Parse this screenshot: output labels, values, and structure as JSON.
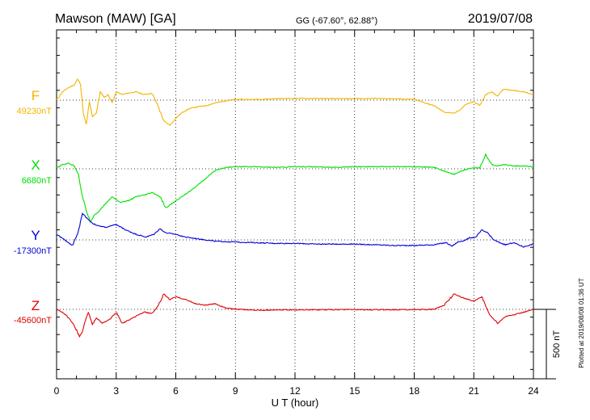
{
  "header": {
    "station": "Mawson (MAW)  [GA]",
    "coords": "GG (-67.60°,  62.88°)",
    "date": "2019/07/08"
  },
  "footer": {
    "plotted_note": "Plotted at 2019/08/08 01:36 UT"
  },
  "scale_bar": {
    "label": "500 nT",
    "value_nT": 500
  },
  "colors": {
    "F": "#f4b400",
    "X": "#00e000",
    "Y": "#0000dd",
    "Z": "#e00000"
  },
  "chart_data": {
    "type": "line",
    "xlabel": "U T (hour)",
    "xlim": [
      0,
      24
    ],
    "xticks": [
      "0",
      "3",
      "6",
      "9",
      "12",
      "15",
      "18",
      "21",
      "24"
    ],
    "grid": true,
    "y_units": "nT",
    "y_full_range_nT": 2500,
    "series": [
      {
        "name": "F",
        "baseline_label": "49230nT",
        "baseline": 49230,
        "x": [
          0,
          0.3,
          0.6,
          0.9,
          1.05,
          1.2,
          1.35,
          1.5,
          1.65,
          1.8,
          2.0,
          2.2,
          2.4,
          2.6,
          2.8,
          3.0,
          3.3,
          3.6,
          4.0,
          4.4,
          4.8,
          5.1,
          5.4,
          5.7,
          6.0,
          6.3,
          6.7,
          7.0,
          7.5,
          8.0,
          8.5,
          9.0,
          10,
          11,
          12,
          13,
          14,
          15,
          16,
          17,
          18,
          19,
          19.5,
          20.0,
          20.3,
          20.6,
          21.0,
          21.3,
          21.6,
          21.9,
          22.2,
          22.5,
          23.0,
          23.5,
          24
        ],
        "values": [
          0,
          60,
          90,
          110,
          150,
          120,
          -100,
          -175,
          -10,
          -120,
          -90,
          60,
          20,
          40,
          -20,
          60,
          40,
          50,
          60,
          40,
          50,
          -40,
          -150,
          -180,
          -130,
          -90,
          -60,
          -50,
          -40,
          -20,
          -5,
          5,
          5,
          10,
          12,
          12,
          10,
          10,
          12,
          10,
          5,
          -40,
          -85,
          -95,
          -70,
          -30,
          -10,
          -40,
          40,
          60,
          30,
          80,
          70,
          60,
          40
        ]
      },
      {
        "name": "X",
        "baseline_label": "6680nT",
        "baseline": 6680,
        "x": [
          0,
          0.3,
          0.6,
          0.9,
          1.1,
          1.3,
          1.5,
          1.7,
          1.9,
          2.1,
          2.4,
          2.8,
          3.2,
          3.6,
          4.0,
          4.4,
          4.8,
          5.2,
          5.5,
          5.8,
          6.2,
          6.6,
          7.0,
          7.5,
          8.0,
          8.5,
          9.0,
          10,
          11,
          12,
          13,
          14,
          15,
          16,
          17,
          18,
          19,
          20.0,
          20.5,
          21.0,
          21.3,
          21.6,
          21.9,
          22.2,
          22.5,
          23.0,
          23.5,
          24
        ],
        "values": [
          5,
          30,
          40,
          20,
          -40,
          -200,
          -300,
          -380,
          -330,
          -310,
          -260,
          -200,
          -240,
          -230,
          -200,
          -190,
          -170,
          -200,
          -280,
          -250,
          -210,
          -170,
          -130,
          -70,
          -10,
          10,
          15,
          15,
          10,
          15,
          15,
          10,
          15,
          15,
          15,
          15,
          10,
          -40,
          -10,
          10,
          5,
          100,
          30,
          20,
          30,
          20,
          20,
          15
        ]
      },
      {
        "name": "Y",
        "baseline_label": "-17300nT",
        "baseline": -17300,
        "x": [
          0,
          0.4,
          0.8,
          1.1,
          1.3,
          1.5,
          1.8,
          2.1,
          2.5,
          3.0,
          3.5,
          4.0,
          4.5,
          4.9,
          5.2,
          5.5,
          6.0,
          6.5,
          7.0,
          7.5,
          8.0,
          9.0,
          10,
          11,
          12,
          13,
          14,
          15,
          16,
          17,
          18,
          19,
          19.6,
          19.9,
          20.2,
          20.5,
          20.8,
          21.1,
          21.4,
          21.7,
          22.0,
          22.3,
          22.6,
          23.0,
          23.5,
          24
        ],
        "values": [
          40,
          0,
          -40,
          60,
          190,
          160,
          120,
          100,
          90,
          110,
          70,
          40,
          20,
          40,
          80,
          50,
          40,
          20,
          10,
          0,
          -10,
          -15,
          -20,
          -25,
          -25,
          -30,
          -30,
          -30,
          -35,
          -40,
          -40,
          -35,
          -20,
          -45,
          -15,
          -5,
          15,
          20,
          70,
          50,
          0,
          -20,
          -35,
          -20,
          -50,
          -30
        ]
      },
      {
        "name": "Z",
        "baseline_label": "-45600nT",
        "baseline": -45600,
        "x": [
          0,
          0.3,
          0.6,
          0.9,
          1.15,
          1.3,
          1.45,
          1.6,
          1.8,
          2.0,
          2.3,
          2.7,
          3.0,
          3.3,
          3.6,
          4.0,
          4.4,
          4.8,
          5.1,
          5.4,
          5.7,
          6.0,
          6.5,
          7.0,
          7.5,
          8.0,
          8.5,
          9.0,
          10,
          11,
          12,
          13,
          14,
          15,
          16,
          17,
          18,
          19,
          19.5,
          20.0,
          20.5,
          21.0,
          21.4,
          21.8,
          22.2,
          22.6,
          23.0,
          23.5,
          24
        ],
        "values": [
          0,
          -20,
          -60,
          -120,
          -195,
          -160,
          -80,
          -20,
          -110,
          -60,
          -100,
          -70,
          -20,
          -100,
          -80,
          -50,
          -20,
          -30,
          20,
          110,
          70,
          90,
          70,
          40,
          30,
          40,
          10,
          0,
          -5,
          -5,
          -3,
          -3,
          -2,
          -2,
          -3,
          -2,
          -2,
          0,
          30,
          110,
          80,
          60,
          90,
          -40,
          -100,
          -50,
          -40,
          -20,
          0
        ]
      }
    ]
  }
}
